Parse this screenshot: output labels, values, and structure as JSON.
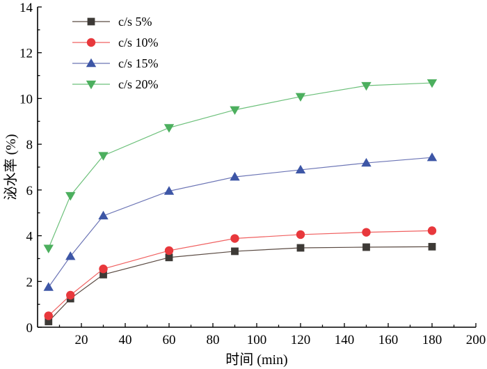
{
  "chart_data": {
    "type": "line",
    "xlabel": "时间 (min)",
    "ylabel": "泌水率 (%)",
    "xlim": [
      0,
      200
    ],
    "ylim": [
      0,
      14
    ],
    "xticks": [
      20,
      40,
      60,
      80,
      100,
      120,
      140,
      160,
      180,
      200
    ],
    "yticks": [
      0,
      2,
      4,
      6,
      8,
      10,
      12,
      14
    ],
    "grid": false,
    "legend_position": "top-left",
    "x": [
      5,
      15,
      30,
      60,
      90,
      120,
      150,
      180
    ],
    "series": [
      {
        "name": "c/s 5%",
        "marker": "square",
        "line_color": "#5a4a42",
        "marker_color": "#3d3a36",
        "values": [
          0.25,
          1.25,
          2.3,
          3.05,
          3.32,
          3.47,
          3.5,
          3.52
        ]
      },
      {
        "name": "c/s 10%",
        "marker": "circle",
        "line_color": "#f06060",
        "marker_color": "#e8383c",
        "values": [
          0.5,
          1.4,
          2.55,
          3.35,
          3.88,
          4.05,
          4.15,
          4.22
        ]
      },
      {
        "name": "c/s 15%",
        "marker": "triangle-up",
        "line_color": "#6b74b5",
        "marker_color": "#3d56a6",
        "values": [
          1.75,
          3.1,
          4.87,
          5.95,
          6.57,
          6.88,
          7.18,
          7.42
        ]
      },
      {
        "name": "c/s 20%",
        "marker": "triangle-down",
        "line_color": "#6cc07a",
        "marker_color": "#4caf5e",
        "values": [
          3.45,
          5.75,
          7.5,
          8.72,
          9.5,
          10.08,
          10.56,
          10.68
        ]
      }
    ]
  }
}
